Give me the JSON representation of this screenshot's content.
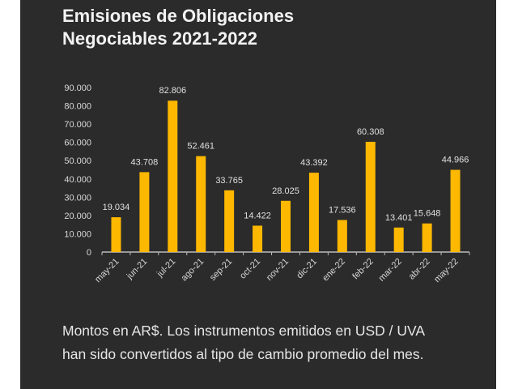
{
  "chart_data": {
    "type": "bar",
    "title": "Emisiones de Obligaciones Negociables 2021-2022",
    "title_lines": [
      "Emisiones de Obligaciones",
      "Negociables 2021-2022"
    ],
    "categories": [
      "may-21",
      "jun-21",
      "jul-21",
      "ago-21",
      "sep-21",
      "oct-21",
      "nov-21",
      "dic-21",
      "ene-22",
      "feb-22",
      "mar-22",
      "abr-22",
      "may-22"
    ],
    "values": [
      19034,
      43708,
      82806,
      52461,
      33765,
      14422,
      28025,
      43392,
      17536,
      60308,
      13401,
      15648,
      44966
    ],
    "data_labels": [
      "19.034",
      "43.708",
      "82.806",
      "52.461",
      "33.765",
      "14.422",
      "28.025",
      "43.392",
      "17.536",
      "60.308",
      "13.401",
      "15.648",
      "44.966"
    ],
    "ylim": [
      0,
      90000
    ],
    "yticks": [
      0,
      10000,
      20000,
      30000,
      40000,
      50000,
      60000,
      70000,
      80000,
      90000
    ],
    "ytick_labels": [
      "0",
      "10.000",
      "20.000",
      "30.000",
      "40.000",
      "50.000",
      "60.000",
      "70.000",
      "80.000",
      "90.000"
    ],
    "xlabel": "",
    "ylabel": "",
    "grid": false,
    "bar_color": "#FFB800",
    "background": "#2b2b2b"
  },
  "note": "Montos en AR$. Los instrumentos emitidos en USD / UVA han sido convertidos al tipo de cambio promedio del mes."
}
